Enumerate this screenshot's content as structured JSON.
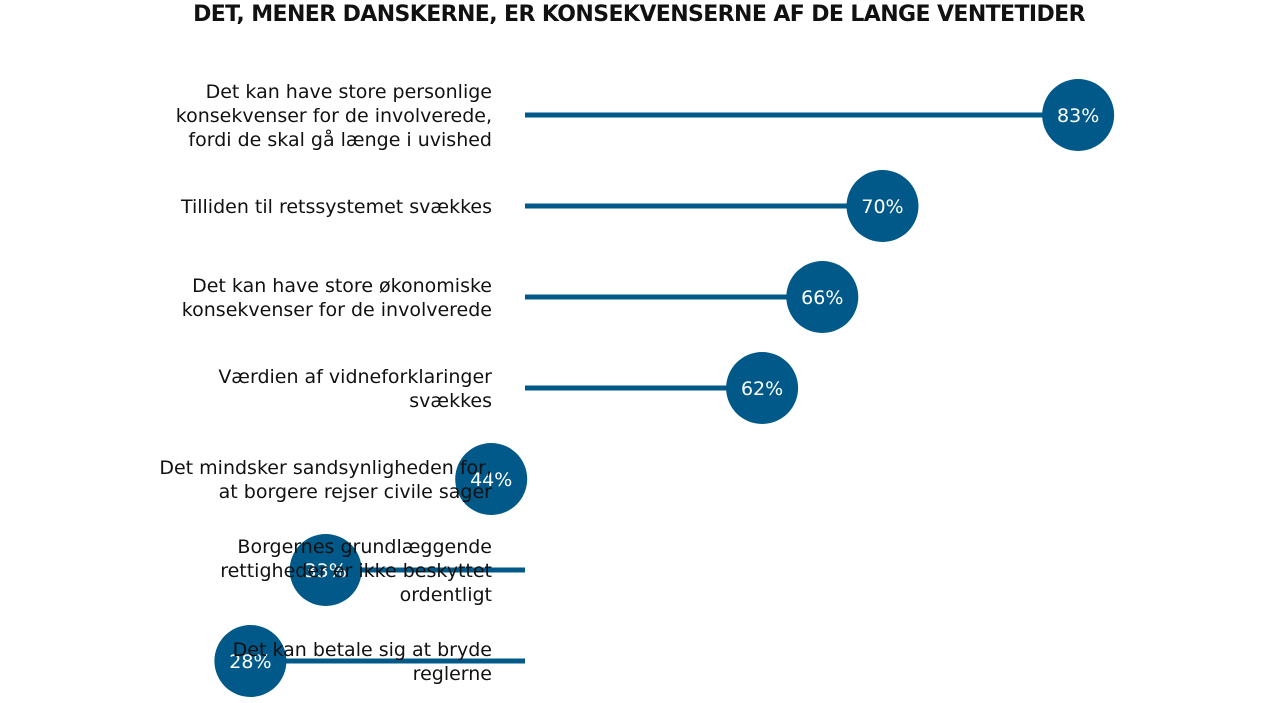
{
  "chart_data": {
    "type": "bar",
    "style": "lollipop",
    "title": "DET, MENER DANSKERNE, ER KONSEKVENSERNE  AF DE LANGE VENTETIDER",
    "categories": [
      [
        "Det kan have store personlige",
        "konsekvenser for de involverede,",
        "fordi de skal gå længe i uvished"
      ],
      [
        "Tilliden til retssystemet svækkes"
      ],
      [
        "Det kan have store økonomiske",
        "konsekvenser for de involverede"
      ],
      [
        "Værdien af vidneforklaringer",
        "svækkes"
      ],
      [
        "Det mindsker sandsynligheden for,",
        "at borgere rejser civile sager"
      ],
      [
        "Borgernes grundlæggende",
        "rettigheder er ikke beskyttet",
        "ordentligt"
      ],
      [
        "Det kan betale sig at bryde",
        "reglerne"
      ]
    ],
    "values": [
      83,
      70,
      66,
      62,
      44,
      33,
      28
    ],
    "value_labels": [
      "83%",
      "70%",
      "66%",
      "62%",
      "44%",
      "33%",
      "28%"
    ],
    "xlim": [
      0,
      100
    ],
    "grid": false,
    "legend": "none",
    "colors": {
      "marker": "#01598A",
      "value_text": "#FFFFFF",
      "label_text": "#111111"
    }
  }
}
